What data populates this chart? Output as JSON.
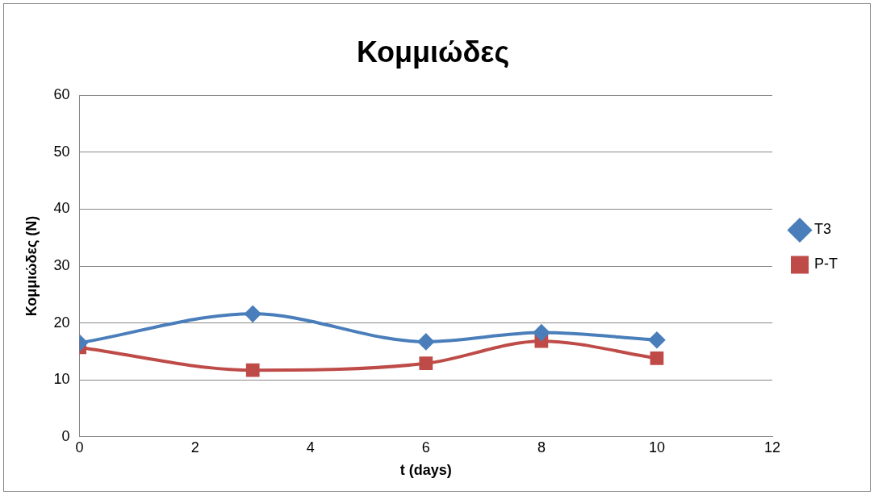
{
  "chart_data": {
    "type": "line",
    "title": "Κομμιώδες",
    "xlabel": "t (days)",
    "ylabel": "Κομμιώδες (N)",
    "x": [
      0,
      3,
      6,
      8,
      10
    ],
    "series": [
      {
        "name": "T3",
        "color": "#4a7ebb",
        "marker": "diamond",
        "values": [
          16.5,
          21.6,
          16.7,
          18.3,
          17.0
        ]
      },
      {
        "name": "P-T",
        "color": "#be4b48",
        "marker": "square",
        "values": [
          15.7,
          11.7,
          12.9,
          16.8,
          13.8
        ]
      }
    ],
    "xlim": [
      0,
      12
    ],
    "xticks": [
      0,
      2,
      4,
      6,
      8,
      10,
      12
    ],
    "ylim": [
      0,
      60
    ],
    "yticks": [
      0,
      10,
      20,
      30,
      40,
      50,
      60
    ],
    "grid": "y",
    "legend": "right",
    "line_style": "solid"
  }
}
